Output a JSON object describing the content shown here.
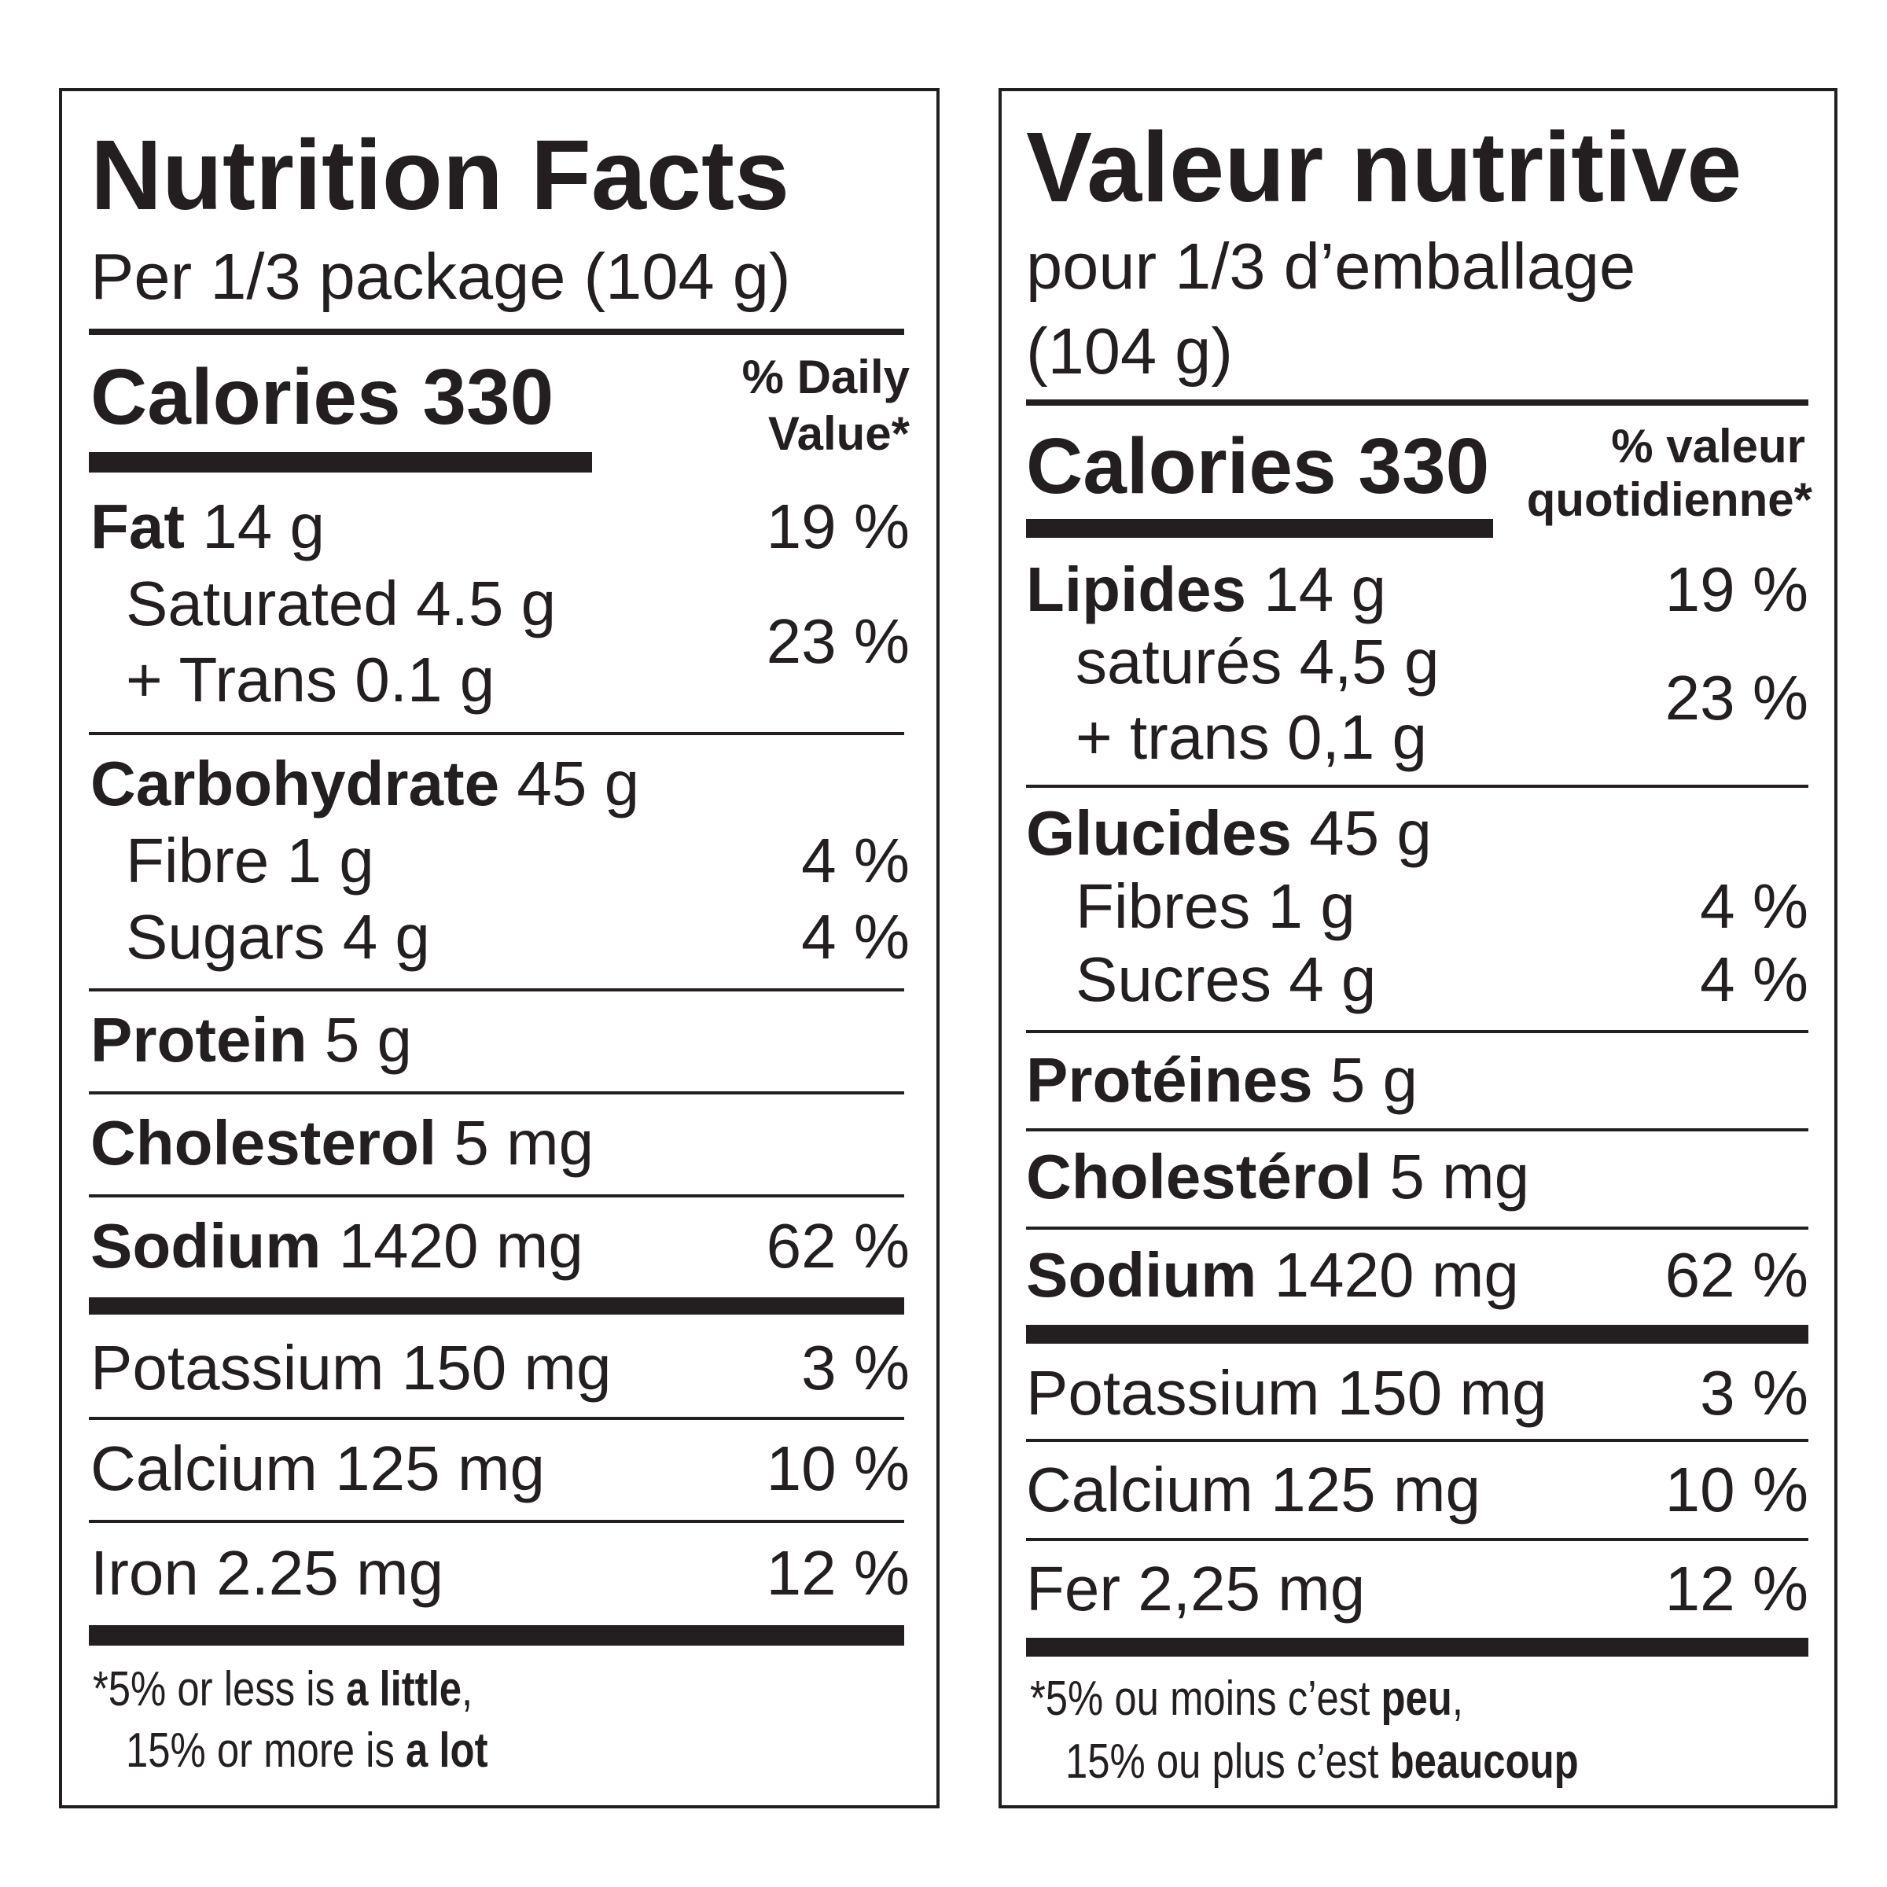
{
  "en": {
    "title": "Nutrition Facts",
    "serving": "Per 1/3 package (104 g)",
    "calories_label": "Calories 330",
    "dv_header_1": "% Daily",
    "dv_header_2": "Value*",
    "rows": {
      "fat": {
        "name": "Fat",
        "amount": "14 g",
        "dv": "19 %"
      },
      "saturated": {
        "name": "Saturated 4.5 g"
      },
      "trans": {
        "name": "+ Trans 0.1 g"
      },
      "sat_trans_dv": "23 %",
      "carb": {
        "name": "Carbohydrate",
        "amount": "45 g"
      },
      "fibre": {
        "name": "Fibre 1 g",
        "dv": "4 %"
      },
      "sugars": {
        "name": "Sugars 4 g",
        "dv": "4 %"
      },
      "protein": {
        "name": "Protein",
        "amount": "5 g"
      },
      "cholesterol": {
        "name": "Cholesterol",
        "amount": "5 mg"
      },
      "sodium": {
        "name": "Sodium",
        "amount": "1420 mg",
        "dv": "62 %"
      },
      "potassium": {
        "name": "Potassium 150 mg",
        "dv": "3 %"
      },
      "calcium": {
        "name": "Calcium 125 mg",
        "dv": "10 %"
      },
      "iron": {
        "name": "Iron 2.25 mg",
        "dv": "12 %"
      }
    },
    "footnote": {
      "line1_pre": "*5% or less is ",
      "line1_bold": "a little",
      "line1_post": ",",
      "line2_pre": "15% or more is ",
      "line2_bold": "a lot"
    }
  },
  "fr": {
    "title": "Valeur nutritive",
    "serving_1": "pour 1/3 d’emballage",
    "serving_2": "(104 g)",
    "calories_label": "Calories 330",
    "dv_header_1": "% valeur",
    "dv_header_2": "quotidienne*",
    "rows": {
      "fat": {
        "name": "Lipides",
        "amount": "14 g",
        "dv": "19 %"
      },
      "saturated": {
        "name": "saturés 4,5 g"
      },
      "trans": {
        "name": "+ trans 0,1 g"
      },
      "sat_trans_dv": "23 %",
      "carb": {
        "name": "Glucides",
        "amount": "45 g"
      },
      "fibre": {
        "name": "Fibres 1 g",
        "dv": "4 %"
      },
      "sugars": {
        "name": "Sucres 4 g",
        "dv": "4 %"
      },
      "protein": {
        "name": "Protéines",
        "amount": "5 g"
      },
      "cholesterol": {
        "name": "Cholestérol",
        "amount": "5 mg"
      },
      "sodium": {
        "name": "Sodium",
        "amount": "1420 mg",
        "dv": "62 %"
      },
      "potassium": {
        "name": "Potassium 150 mg",
        "dv": "3 %"
      },
      "calcium": {
        "name": "Calcium 125 mg",
        "dv": "10 %"
      },
      "iron": {
        "name": "Fer 2,25 mg",
        "dv": "12 %"
      }
    },
    "footnote": {
      "line1_pre": "*5% ou moins c’est ",
      "line1_bold": "peu",
      "line1_post": ",",
      "line2_pre": "15% ou plus c’est ",
      "line2_bold": "beaucoup"
    }
  }
}
